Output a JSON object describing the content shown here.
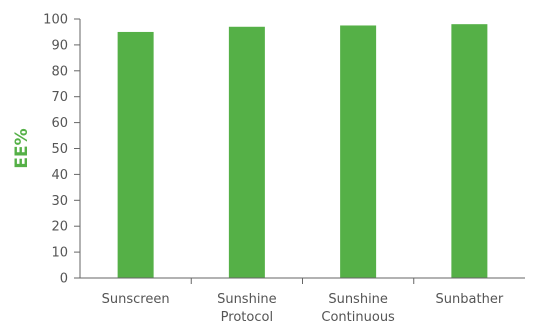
{
  "chart_data": {
    "type": "bar",
    "categories": [
      [
        "Sunscreen"
      ],
      [
        "Sunshine",
        "Protocol"
      ],
      [
        "Sunshine",
        "Continuous"
      ],
      [
        "Sunbather"
      ]
    ],
    "values": [
      95,
      97,
      97.5,
      98
    ],
    "ylabel": "EE%",
    "xlabel": "",
    "title": "",
    "ylim": [
      0,
      100
    ],
    "yticks": [
      0,
      10,
      20,
      30,
      40,
      50,
      60,
      70,
      80,
      90,
      100
    ],
    "grid": false,
    "legend": "none"
  },
  "colors": {
    "bar": "#55b047",
    "ylabel": "#55b047",
    "axis": "#666666",
    "tick_text": "#555555"
  }
}
